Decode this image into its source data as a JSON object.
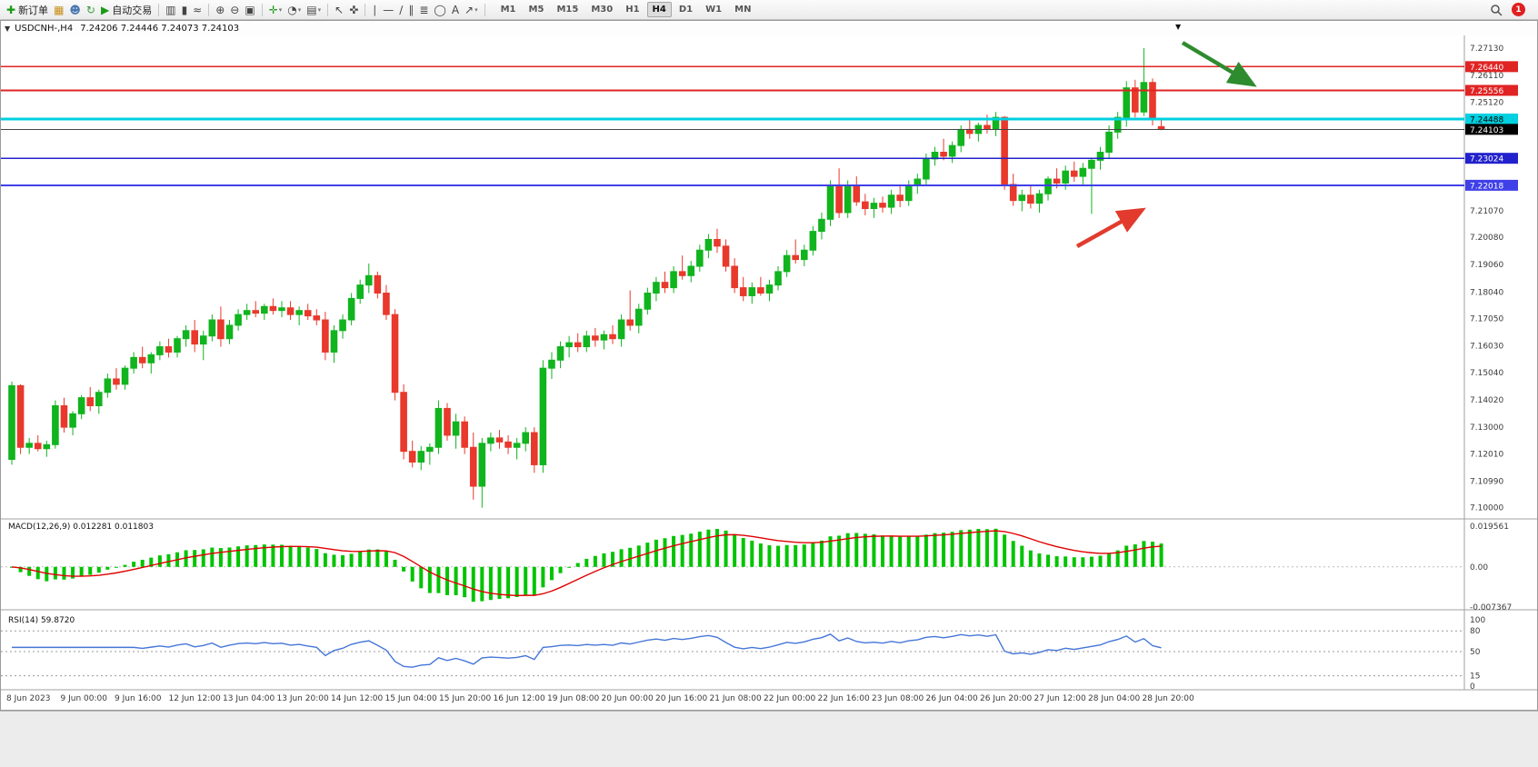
{
  "window": {
    "symbol_period": "USDCNH-,H4",
    "ohlc_text": "7.24206 7.24446 7.24073 7.24103",
    "collapse_glyph": "▼",
    "scroll_marker_glyph": "▼"
  },
  "toolbar": {
    "items": [
      {
        "name": "new-order",
        "glyph": "✚",
        "color": "#1a9a1a",
        "label": "新订单"
      },
      {
        "name": "charts",
        "glyph": "▦",
        "color": "#c89018"
      },
      {
        "name": "profiles",
        "glyph": "☻",
        "color": "#4a78b0"
      },
      {
        "name": "refresh",
        "glyph": "↻",
        "color": "#3a9a3a"
      },
      {
        "name": "auto-trading",
        "glyph": "▶",
        "color": "#1a9a1a",
        "label": "自动交易"
      },
      {
        "sep": true
      },
      {
        "name": "bar-chart",
        "glyph": "▥",
        "color": "#444444"
      },
      {
        "name": "candlestick-chart",
        "glyph": "▮",
        "color": "#444444"
      },
      {
        "name": "line-chart",
        "glyph": "≈",
        "color": "#444444"
      },
      {
        "sep": true
      },
      {
        "name": "zoom-in",
        "glyph": "⊕",
        "color": "#444444"
      },
      {
        "name": "zoom-out",
        "glyph": "⊖",
        "color": "#444444"
      },
      {
        "name": "tile-windows",
        "glyph": "▣",
        "color": "#444444"
      },
      {
        "sep": true
      },
      {
        "name": "indicators",
        "glyph": "✛",
        "color": "#1a9a1a",
        "caret": true
      },
      {
        "name": "periods",
        "glyph": "◔",
        "color": "#444444",
        "caret": true
      },
      {
        "name": "templates",
        "glyph": "▤",
        "color": "#444444",
        "caret": true
      },
      {
        "sep": true
      },
      {
        "name": "cursor",
        "glyph": "↖",
        "color": "#444444"
      },
      {
        "name": "crosshair",
        "glyph": "✜",
        "color": "#444444"
      },
      {
        "sep": true
      },
      {
        "name": "vertical-line",
        "glyph": "∣",
        "color": "#444444"
      },
      {
        "name": "horizontal-line",
        "glyph": "—",
        "color": "#444444"
      },
      {
        "name": "trendline",
        "glyph": "∕",
        "color": "#444444"
      },
      {
        "name": "equidistant-channel",
        "glyph": "∥",
        "color": "#444444"
      },
      {
        "name": "fibonacci",
        "glyph": "≣",
        "color": "#444444"
      },
      {
        "name": "shapes",
        "glyph": "◯",
        "color": "#444444"
      },
      {
        "name": "text-tool",
        "glyph": "A",
        "color": "#444444"
      },
      {
        "name": "arrows-tool",
        "glyph": "↗",
        "color": "#444444",
        "caret": true
      },
      {
        "sep": true
      }
    ],
    "timeframes": [
      {
        "label": "M1"
      },
      {
        "label": "M5"
      },
      {
        "label": "M15"
      },
      {
        "label": "M30"
      },
      {
        "label": "H1"
      },
      {
        "label": "H4",
        "active": true
      },
      {
        "label": "D1"
      },
      {
        "label": "W1"
      },
      {
        "label": "MN"
      }
    ],
    "badge": "1"
  },
  "chart_data": {
    "type": "candlestick",
    "symbol": "USDCNH-",
    "timeframe": "H4",
    "colors": {
      "bull": "#10b41e",
      "bear": "#e8392c",
      "macd_hist": "#00c400",
      "macd_signal": "#e00000",
      "rsi_line": "#4576d8",
      "background": "#ffffff",
      "axis_text": "#3a3a3a"
    },
    "price_axis_labels": [
      {
        "price": 7.2713,
        "label": "7.27130"
      },
      {
        "price": 7.2611,
        "label": "7.26110"
      },
      {
        "price": 7.2512,
        "label": "7.25120"
      },
      {
        "price": 7.2107,
        "label": "7.21070"
      },
      {
        "price": 7.2008,
        "label": "7.20080"
      },
      {
        "price": 7.1906,
        "label": "7.19060"
      },
      {
        "price": 7.1804,
        "label": "7.18040"
      },
      {
        "price": 7.1705,
        "label": "7.17050"
      },
      {
        "price": 7.1603,
        "label": "7.16030"
      },
      {
        "price": 7.1504,
        "label": "7.15040"
      },
      {
        "price": 7.1402,
        "label": "7.14020"
      },
      {
        "price": 7.13,
        "label": "7.13000"
      },
      {
        "price": 7.1201,
        "label": "7.12010"
      },
      {
        "price": 7.1099,
        "label": "7.10990"
      },
      {
        "price": 7.1,
        "label": "7.10000"
      }
    ],
    "line_levels": [
      {
        "price": 7.2644,
        "label": "7.26440",
        "color": "#e02424",
        "width": 1.8,
        "text_color": "#ffffff"
      },
      {
        "price": 7.25556,
        "label": "7.25556",
        "color": "#e02424",
        "width": 1.8,
        "text_color": "#ffffff"
      },
      {
        "price": 7.24488,
        "label": "7.24488",
        "color": "#00d0e0",
        "width": 2.6,
        "text_color": "#000000"
      },
      {
        "price": 7.23024,
        "label": "7.23024",
        "color": "#2222cc",
        "width": 1.8,
        "text_color": "#ffffff"
      },
      {
        "price": 7.22018,
        "label": "7.22018",
        "color": "#4040e8",
        "width": 1.8,
        "text_color": "#ffffff"
      }
    ],
    "current_price": {
      "value": 7.24103,
      "label": "7.24103",
      "line_color": "#444444",
      "box_color": "#000000",
      "text_color": "#ffffff"
    },
    "candles": [
      [
        7.118,
        7.147,
        7.116,
        7.1455
      ],
      [
        7.1455,
        7.146,
        7.12,
        7.1225
      ],
      [
        7.1225,
        7.126,
        7.12,
        7.124
      ],
      [
        7.124,
        7.127,
        7.121,
        7.122
      ],
      [
        7.122,
        7.125,
        7.119,
        7.1235
      ],
      [
        7.1235,
        7.14,
        7.122,
        7.138
      ],
      [
        7.138,
        7.141,
        7.128,
        7.13
      ],
      [
        7.13,
        7.136,
        7.127,
        7.135
      ],
      [
        7.135,
        7.142,
        7.133,
        7.141
      ],
      [
        7.141,
        7.145,
        7.136,
        7.138
      ],
      [
        7.138,
        7.144,
        7.135,
        7.143
      ],
      [
        7.143,
        7.15,
        7.141,
        7.148
      ],
      [
        7.148,
        7.152,
        7.144,
        7.146
      ],
      [
        7.146,
        7.153,
        7.144,
        7.152
      ],
      [
        7.152,
        7.158,
        7.15,
        7.156
      ],
      [
        7.156,
        7.16,
        7.152,
        7.154
      ],
      [
        7.154,
        7.158,
        7.15,
        7.157
      ],
      [
        7.157,
        7.162,
        7.155,
        7.16
      ],
      [
        7.16,
        7.163,
        7.156,
        7.158
      ],
      [
        7.158,
        7.164,
        7.156,
        7.163
      ],
      [
        7.163,
        7.168,
        7.16,
        7.166
      ],
      [
        7.166,
        7.17,
        7.158,
        7.161
      ],
      [
        7.161,
        7.166,
        7.155,
        7.164
      ],
      [
        7.164,
        7.172,
        7.162,
        7.17
      ],
      [
        7.17,
        7.175,
        7.16,
        7.163
      ],
      [
        7.163,
        7.17,
        7.161,
        7.168
      ],
      [
        7.168,
        7.174,
        7.166,
        7.172
      ],
      [
        7.172,
        7.176,
        7.17,
        7.1735
      ],
      [
        7.1735,
        7.177,
        7.171,
        7.1725
      ],
      [
        7.1725,
        7.176,
        7.17,
        7.175
      ],
      [
        7.175,
        7.178,
        7.172,
        7.1735
      ],
      [
        7.1735,
        7.177,
        7.171,
        7.1745
      ],
      [
        7.1745,
        7.177,
        7.17,
        7.172
      ],
      [
        7.172,
        7.175,
        7.168,
        7.1735
      ],
      [
        7.1735,
        7.176,
        7.17,
        7.1715
      ],
      [
        7.1715,
        7.174,
        7.168,
        7.17
      ],
      [
        7.17,
        7.173,
        7.155,
        7.158
      ],
      [
        7.158,
        7.168,
        7.154,
        7.166
      ],
      [
        7.166,
        7.172,
        7.163,
        7.17
      ],
      [
        7.17,
        7.18,
        7.168,
        7.178
      ],
      [
        7.178,
        7.185,
        7.176,
        7.183
      ],
      [
        7.183,
        7.191,
        7.18,
        7.1865
      ],
      [
        7.1865,
        7.188,
        7.178,
        7.18
      ],
      [
        7.18,
        7.183,
        7.17,
        7.172
      ],
      [
        7.172,
        7.174,
        7.14,
        7.143
      ],
      [
        7.143,
        7.146,
        7.118,
        7.121
      ],
      [
        7.121,
        7.125,
        7.115,
        7.117
      ],
      [
        7.117,
        7.123,
        7.114,
        7.121
      ],
      [
        7.121,
        7.124,
        7.116,
        7.1225
      ],
      [
        7.1225,
        7.14,
        7.12,
        7.137
      ],
      [
        7.137,
        7.139,
        7.125,
        7.127
      ],
      [
        7.127,
        7.135,
        7.122,
        7.132
      ],
      [
        7.132,
        7.134,
        7.12,
        7.1225
      ],
      [
        7.1225,
        7.128,
        7.103,
        7.108
      ],
      [
        7.108,
        7.126,
        7.1,
        7.124
      ],
      [
        7.124,
        7.128,
        7.121,
        7.126
      ],
      [
        7.126,
        7.129,
        7.122,
        7.1245
      ],
      [
        7.1245,
        7.127,
        7.12,
        7.1225
      ],
      [
        7.1225,
        7.126,
        7.118,
        7.124
      ],
      [
        7.124,
        7.13,
        7.121,
        7.128
      ],
      [
        7.128,
        7.13,
        7.113,
        7.116
      ],
      [
        7.116,
        7.155,
        7.113,
        7.152
      ],
      [
        7.152,
        7.158,
        7.148,
        7.155
      ],
      [
        7.155,
        7.162,
        7.152,
        7.16
      ],
      [
        7.16,
        7.164,
        7.156,
        7.1615
      ],
      [
        7.1615,
        7.165,
        7.158,
        7.16
      ],
      [
        7.16,
        7.166,
        7.158,
        7.164
      ],
      [
        7.164,
        7.167,
        7.16,
        7.1625
      ],
      [
        7.1625,
        7.166,
        7.159,
        7.1645
      ],
      [
        7.1645,
        7.168,
        7.161,
        7.163
      ],
      [
        7.163,
        7.172,
        7.16,
        7.17
      ],
      [
        7.17,
        7.181,
        7.166,
        7.168
      ],
      [
        7.168,
        7.176,
        7.165,
        7.174
      ],
      [
        7.174,
        7.182,
        7.172,
        7.18
      ],
      [
        7.18,
        7.186,
        7.177,
        7.184
      ],
      [
        7.184,
        7.188,
        7.18,
        7.182
      ],
      [
        7.182,
        7.19,
        7.18,
        7.188
      ],
      [
        7.188,
        7.194,
        7.185,
        7.1865
      ],
      [
        7.1865,
        7.192,
        7.184,
        7.19
      ],
      [
        7.19,
        7.198,
        7.188,
        7.196
      ],
      [
        7.196,
        7.202,
        7.193,
        7.2
      ],
      [
        7.2,
        7.204,
        7.195,
        7.1975
      ],
      [
        7.1975,
        7.2,
        7.188,
        7.19
      ],
      [
        7.19,
        7.193,
        7.18,
        7.182
      ],
      [
        7.182,
        7.186,
        7.177,
        7.179
      ],
      [
        7.179,
        7.184,
        7.176,
        7.182
      ],
      [
        7.182,
        7.186,
        7.179,
        7.18
      ],
      [
        7.18,
        7.185,
        7.177,
        7.183
      ],
      [
        7.183,
        7.19,
        7.181,
        7.188
      ],
      [
        7.188,
        7.196,
        7.186,
        7.194
      ],
      [
        7.194,
        7.2,
        7.191,
        7.1925
      ],
      [
        7.1925,
        7.198,
        7.19,
        7.196
      ],
      [
        7.196,
        7.205,
        7.194,
        7.203
      ],
      [
        7.203,
        7.21,
        7.2,
        7.2075
      ],
      [
        7.2075,
        7.222,
        7.205,
        7.22
      ],
      [
        7.22,
        7.2265,
        7.208,
        7.21
      ],
      [
        7.21,
        7.222,
        7.208,
        7.22
      ],
      [
        7.22,
        7.2235,
        7.2125,
        7.214
      ],
      [
        7.214,
        7.217,
        7.209,
        7.2115
      ],
      [
        7.2115,
        7.2155,
        7.208,
        7.2135
      ],
      [
        7.2135,
        7.216,
        7.21,
        7.212
      ],
      [
        7.212,
        7.2185,
        7.2095,
        7.2165
      ],
      [
        7.2165,
        7.22,
        7.212,
        7.2145
      ],
      [
        7.2145,
        7.222,
        7.2125,
        7.22
      ],
      [
        7.22,
        7.2245,
        7.217,
        7.2225
      ],
      [
        7.2225,
        7.232,
        7.22,
        7.23
      ],
      [
        7.23,
        7.2345,
        7.2275,
        7.2325
      ],
      [
        7.2325,
        7.2375,
        7.2295,
        7.231
      ],
      [
        7.231,
        7.2365,
        7.2285,
        7.235
      ],
      [
        7.235,
        7.2425,
        7.2325,
        7.241
      ],
      [
        7.241,
        7.2445,
        7.2375,
        7.2395
      ],
      [
        7.2395,
        7.2435,
        7.2365,
        7.2425
      ],
      [
        7.2425,
        7.2465,
        7.2395,
        7.241
      ],
      [
        7.241,
        7.2475,
        7.2385,
        7.2455
      ],
      [
        7.2455,
        7.246,
        7.2185,
        7.2205
      ],
      [
        7.2205,
        7.2245,
        7.2125,
        7.2145
      ],
      [
        7.2145,
        7.2185,
        7.2105,
        7.2165
      ],
      [
        7.2165,
        7.22,
        7.2115,
        7.2135
      ],
      [
        7.2135,
        7.2185,
        7.21,
        7.217
      ],
      [
        7.217,
        7.2235,
        7.2145,
        7.2225
      ],
      [
        7.2225,
        7.2265,
        7.219,
        7.221
      ],
      [
        7.221,
        7.2275,
        7.2185,
        7.2255
      ],
      [
        7.2255,
        7.229,
        7.2215,
        7.2235
      ],
      [
        7.2235,
        7.2285,
        7.2205,
        7.2265
      ],
      [
        7.2265,
        7.2305,
        7.2095,
        7.2295
      ],
      [
        7.2295,
        7.2345,
        7.226,
        7.2325
      ],
      [
        7.2325,
        7.2425,
        7.23,
        7.24
      ],
      [
        7.24,
        7.2475,
        7.2375,
        7.2455
      ],
      [
        7.2455,
        7.259,
        7.242,
        7.2565
      ],
      [
        7.2565,
        7.2595,
        7.2455,
        7.2475
      ],
      [
        7.2475,
        7.2713,
        7.246,
        7.2585
      ],
      [
        7.2585,
        7.26,
        7.2425,
        7.2455
      ],
      [
        7.24206,
        7.24446,
        7.24073,
        7.24103
      ]
    ],
    "x_labels": [
      "8 Jun 2023",
      "9 Jun 00:00",
      "9 Jun 16:00",
      "12 Jun 12:00",
      "13 Jun 04:00",
      "13 Jun 20:00",
      "14 Jun 12:00",
      "15 Jun 04:00",
      "15 Jun 20:00",
      "16 Jun 12:00",
      "19 Jun 08:00",
      "20 Jun 00:00",
      "20 Jun 16:00",
      "21 Jun 08:00",
      "22 Jun 00:00",
      "22 Jun 16:00",
      "23 Jun 08:00",
      "26 Jun 04:00",
      "26 Jun 20:00",
      "27 Jun 12:00",
      "28 Jun 04:00",
      "28 Jun 20:00"
    ],
    "indicators": {
      "macd": {
        "title_text": "MACD(12,26,9) 0.012281 0.011803",
        "params": [
          12,
          26,
          9
        ],
        "values": [
          "0.012281",
          "0.011803"
        ],
        "axis_labels": {
          "max": "0.019561",
          "zero": "0.00",
          "min": "-0.007367"
        }
      },
      "rsi": {
        "title_text": "RSI(14) 59.8720",
        "period": 14,
        "value": "59.8720",
        "levels": [
          80,
          50,
          15
        ],
        "axis_labels": [
          {
            "v": 100,
            "label": "100"
          },
          {
            "v": 80,
            "label": "80"
          },
          {
            "v": 50,
            "label": "50"
          },
          {
            "v": 15,
            "label": "15"
          },
          {
            "v": 0,
            "label": "0"
          }
        ]
      }
    },
    "annotations": [
      {
        "type": "arrow",
        "name": "green-down-arrow",
        "color": "#2e8b2e",
        "from": [
          1300,
          8
        ],
        "to": [
          1374,
          52
        ]
      },
      {
        "type": "arrow",
        "name": "red-up-arrow",
        "color": "#e23b2e",
        "from": [
          1184,
          232
        ],
        "to": [
          1252,
          194
        ]
      }
    ]
  }
}
